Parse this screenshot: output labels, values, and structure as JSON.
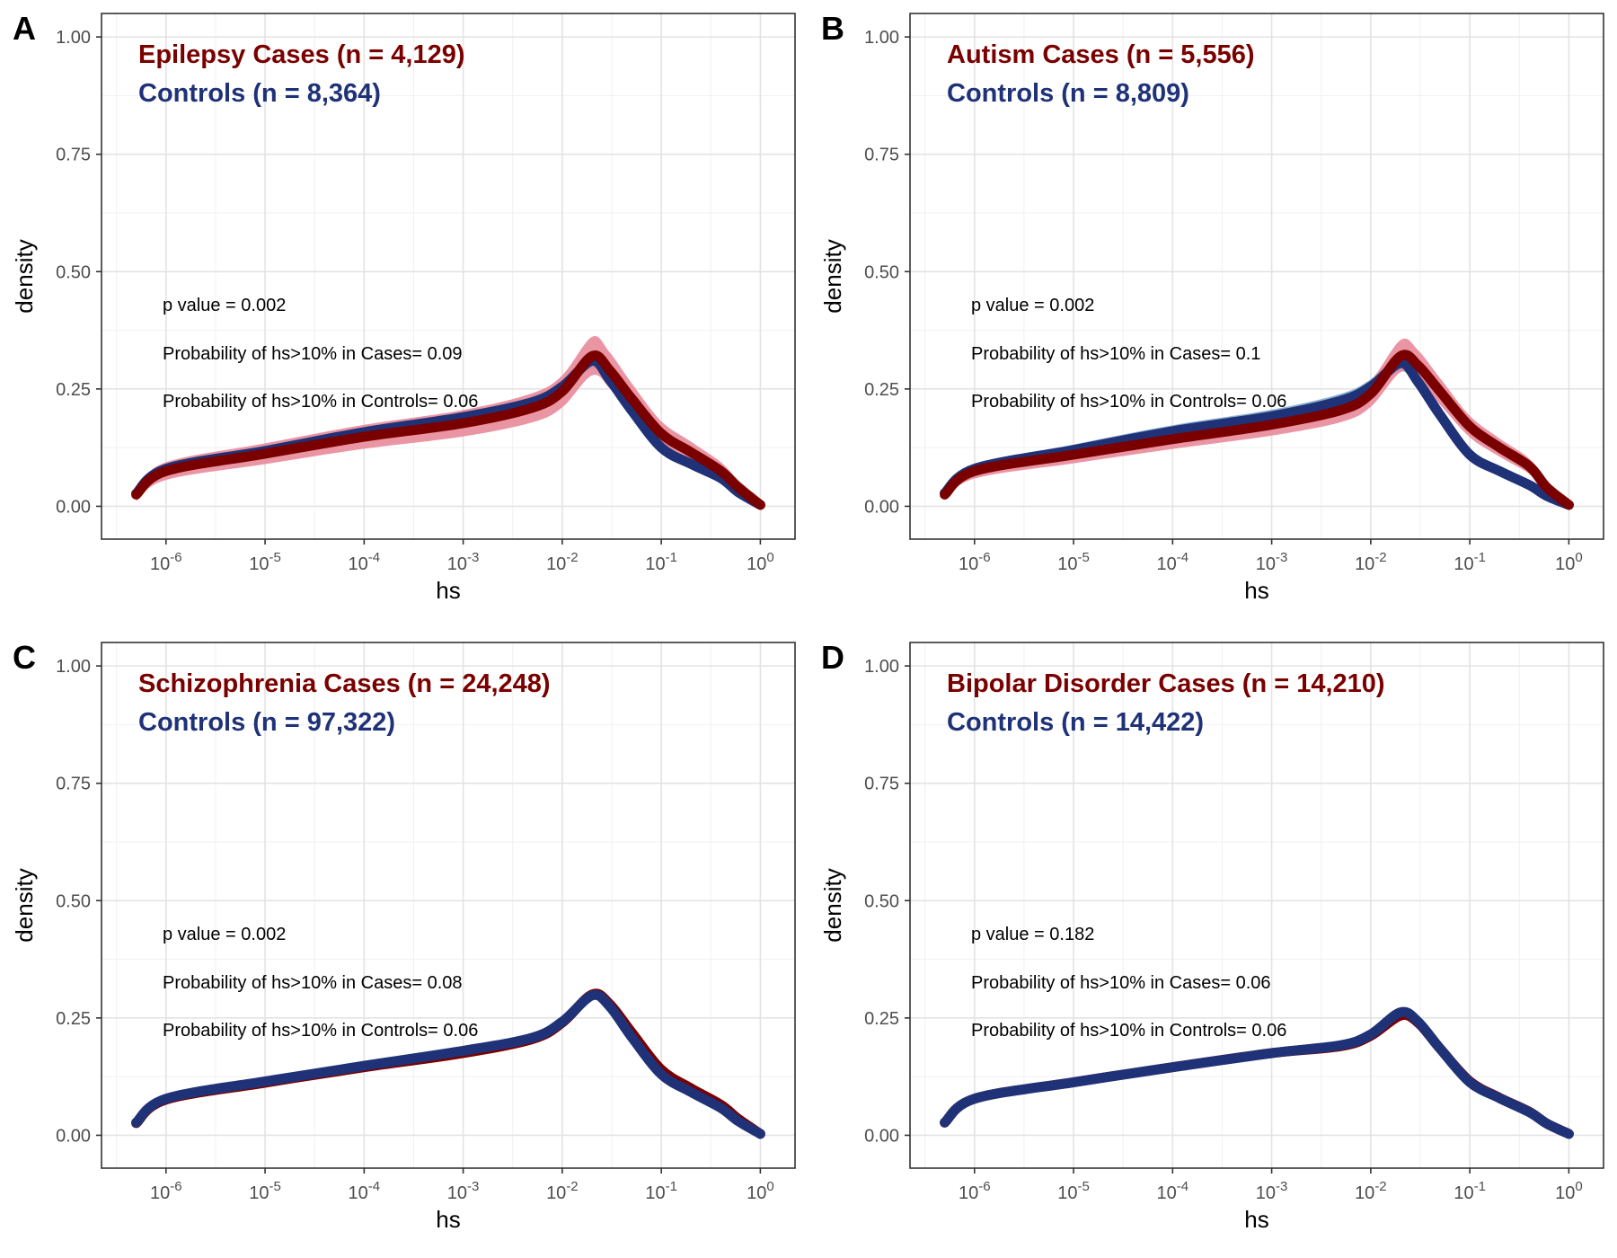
{
  "colors": {
    "cases_line": "#7a0000",
    "cases_band": "#e8899a",
    "controls_line": "#1f3278",
    "controls_band": "#7fa8c8",
    "grid_major": "#e3e3e3",
    "grid_minor": "#f1f1f1",
    "panel_border": "#333333",
    "axis_text": "#4d4d4d"
  },
  "chart_data": [
    {
      "type": "line",
      "panel_label": "A",
      "xlabel": "hs",
      "ylabel": "density",
      "x_scale": "log10",
      "xlim": [
        5e-07,
        1
      ],
      "ylim": [
        0,
        1
      ],
      "x_ticks": [
        {
          "base": "10",
          "exp": "-6",
          "value": 1e-06
        },
        {
          "base": "10",
          "exp": "-5",
          "value": 1e-05
        },
        {
          "base": "10",
          "exp": "-4",
          "value": 0.0001
        },
        {
          "base": "10",
          "exp": "-3",
          "value": 0.001
        },
        {
          "base": "10",
          "exp": "-2",
          "value": 0.01
        },
        {
          "base": "10",
          "exp": "-1",
          "value": 0.1
        },
        {
          "base": "10",
          "exp": "0",
          "value": 1
        }
      ],
      "y_ticks": [
        "0.00",
        "0.25",
        "0.50",
        "0.75",
        "1.00"
      ],
      "grid": true,
      "legend_cases": "Epilepsy Cases (n = 4,129)",
      "legend_controls": "Controls (n = 8,364)",
      "annotations": [
        "p value = 0.002",
        "Probability of hs>10% in Cases= 0.09",
        "Probability of hs>10% in Controls= 0.06"
      ],
      "x": [
        5e-07,
        1e-06,
        1e-05,
        0.0001,
        0.001,
        0.005,
        0.01,
        0.02,
        0.03,
        0.05,
        0.1,
        0.2,
        0.4,
        0.6,
        1
      ],
      "series": [
        {
          "name": "Epilepsy Cases (n = 4,129)",
          "values": [
            0.025,
            0.075,
            0.112,
            0.148,
            0.177,
            0.21,
            0.245,
            0.32,
            0.29,
            0.23,
            0.155,
            0.115,
            0.075,
            0.04,
            0.003
          ],
          "band": [
            0.012,
            0.042
          ]
        },
        {
          "name": "Controls (n = 8,364)",
          "values": [
            0.027,
            0.08,
            0.118,
            0.158,
            0.19,
            0.222,
            0.255,
            0.31,
            0.27,
            0.205,
            0.125,
            0.09,
            0.06,
            0.03,
            0.003
          ],
          "band": [
            0.006,
            0.016
          ]
        }
      ]
    },
    {
      "type": "line",
      "panel_label": "B",
      "xlabel": "hs",
      "ylabel": "density",
      "x_scale": "log10",
      "xlim": [
        5e-07,
        1
      ],
      "ylim": [
        0,
        1
      ],
      "x_ticks": [
        {
          "base": "10",
          "exp": "-6",
          "value": 1e-06
        },
        {
          "base": "10",
          "exp": "-5",
          "value": 1e-05
        },
        {
          "base": "10",
          "exp": "-4",
          "value": 0.0001
        },
        {
          "base": "10",
          "exp": "-3",
          "value": 0.001
        },
        {
          "base": "10",
          "exp": "-2",
          "value": 0.01
        },
        {
          "base": "10",
          "exp": "-1",
          "value": 0.1
        },
        {
          "base": "10",
          "exp": "0",
          "value": 1
        }
      ],
      "y_ticks": [
        "0.00",
        "0.25",
        "0.50",
        "0.75",
        "1.00"
      ],
      "grid": true,
      "legend_cases": "Autism Cases (n = 5,556)",
      "legend_controls": "Controls (n = 8,809)",
      "annotations": [
        "p value = 0.002",
        "Probability of hs>10% in Cases= 0.1",
        "Probability of hs>10% in Controls= 0.06"
      ],
      "x": [
        5e-07,
        1e-06,
        1e-05,
        0.0001,
        0.001,
        0.005,
        0.01,
        0.02,
        0.03,
        0.05,
        0.1,
        0.2,
        0.4,
        0.6,
        1
      ],
      "series": [
        {
          "name": "Autism Cases (n = 5,556)",
          "values": [
            0.025,
            0.075,
            0.11,
            0.143,
            0.174,
            0.205,
            0.24,
            0.32,
            0.3,
            0.245,
            0.17,
            0.125,
            0.085,
            0.04,
            0.003
          ],
          "band": [
            0.01,
            0.035
          ]
        },
        {
          "name": "Controls (n = 8,809)",
          "values": [
            0.028,
            0.08,
            0.12,
            0.16,
            0.192,
            0.225,
            0.255,
            0.305,
            0.265,
            0.195,
            0.11,
            0.075,
            0.045,
            0.022,
            0.003
          ],
          "band": [
            0.008,
            0.018
          ]
        }
      ]
    },
    {
      "type": "line",
      "panel_label": "C",
      "xlabel": "hs",
      "ylabel": "density",
      "x_scale": "log10",
      "xlim": [
        5e-07,
        1
      ],
      "ylim": [
        0,
        1
      ],
      "x_ticks": [
        {
          "base": "10",
          "exp": "-6",
          "value": 1e-06
        },
        {
          "base": "10",
          "exp": "-5",
          "value": 1e-05
        },
        {
          "base": "10",
          "exp": "-4",
          "value": 0.0001
        },
        {
          "base": "10",
          "exp": "-3",
          "value": 0.001
        },
        {
          "base": "10",
          "exp": "-2",
          "value": 0.01
        },
        {
          "base": "10",
          "exp": "-1",
          "value": 0.1
        },
        {
          "base": "10",
          "exp": "0",
          "value": 1
        }
      ],
      "y_ticks": [
        "0.00",
        "0.25",
        "0.50",
        "0.75",
        "1.00"
      ],
      "grid": true,
      "legend_cases": "Schizophrenia Cases (n = 24,248)",
      "legend_controls": "Controls (n = 97,322)",
      "annotations": [
        "p value = 0.002",
        "Probability of hs>10% in Cases= 0.08",
        "Probability of hs>10% in Controls= 0.06"
      ],
      "x": [
        5e-07,
        1e-06,
        1e-05,
        0.0001,
        0.001,
        0.005,
        0.01,
        0.02,
        0.03,
        0.05,
        0.1,
        0.2,
        0.4,
        0.6,
        1
      ],
      "series": [
        {
          "name": "Schizophrenia Cases (n = 24,248)",
          "values": [
            0.026,
            0.076,
            0.112,
            0.145,
            0.175,
            0.205,
            0.24,
            0.3,
            0.28,
            0.22,
            0.14,
            0.1,
            0.065,
            0.035,
            0.003
          ],
          "band": [
            0.004,
            0.01
          ]
        },
        {
          "name": "Controls (n = 97,322)",
          "values": [
            0.027,
            0.078,
            0.115,
            0.148,
            0.18,
            0.208,
            0.242,
            0.298,
            0.275,
            0.21,
            0.13,
            0.092,
            0.058,
            0.03,
            0.003
          ],
          "band": [
            0.003,
            0.006
          ]
        }
      ]
    },
    {
      "type": "line",
      "panel_label": "D",
      "xlabel": "hs",
      "ylabel": "density",
      "x_scale": "log10",
      "xlim": [
        5e-07,
        1
      ],
      "ylim": [
        0,
        1
      ],
      "x_ticks": [
        {
          "base": "10",
          "exp": "-6",
          "value": 1e-06
        },
        {
          "base": "10",
          "exp": "-5",
          "value": 1e-05
        },
        {
          "base": "10",
          "exp": "-4",
          "value": 0.0001
        },
        {
          "base": "10",
          "exp": "-3",
          "value": 0.001
        },
        {
          "base": "10",
          "exp": "-2",
          "value": 0.01
        },
        {
          "base": "10",
          "exp": "-1",
          "value": 0.1
        },
        {
          "base": "10",
          "exp": "0",
          "value": 1
        }
      ],
      "y_ticks": [
        "0.00",
        "0.25",
        "0.50",
        "0.75",
        "1.00"
      ],
      "grid": true,
      "legend_cases": "Bipolar Disorder Cases (n = 14,210)",
      "legend_controls": "Controls (n = 14,422)",
      "annotations": [
        "p value = 0.182",
        "Probability of hs>10% in Cases= 0.06",
        "Probability of hs>10% in Controls= 0.06"
      ],
      "x": [
        5e-07,
        1e-06,
        1e-05,
        0.0001,
        0.001,
        0.005,
        0.01,
        0.02,
        0.03,
        0.05,
        0.1,
        0.2,
        0.4,
        0.6,
        1
      ],
      "series": [
        {
          "name": "Bipolar Disorder Cases (n = 14,210)",
          "values": [
            0.027,
            0.078,
            0.113,
            0.145,
            0.175,
            0.19,
            0.212,
            0.255,
            0.24,
            0.185,
            0.115,
            0.08,
            0.05,
            0.025,
            0.003
          ],
          "band": [
            0.004,
            0.008
          ]
        },
        {
          "name": "Controls (n = 14,422)",
          "values": [
            0.027,
            0.078,
            0.113,
            0.145,
            0.175,
            0.192,
            0.215,
            0.262,
            0.242,
            0.185,
            0.113,
            0.079,
            0.049,
            0.025,
            0.003
          ],
          "band": [
            0.004,
            0.008
          ]
        }
      ]
    }
  ]
}
